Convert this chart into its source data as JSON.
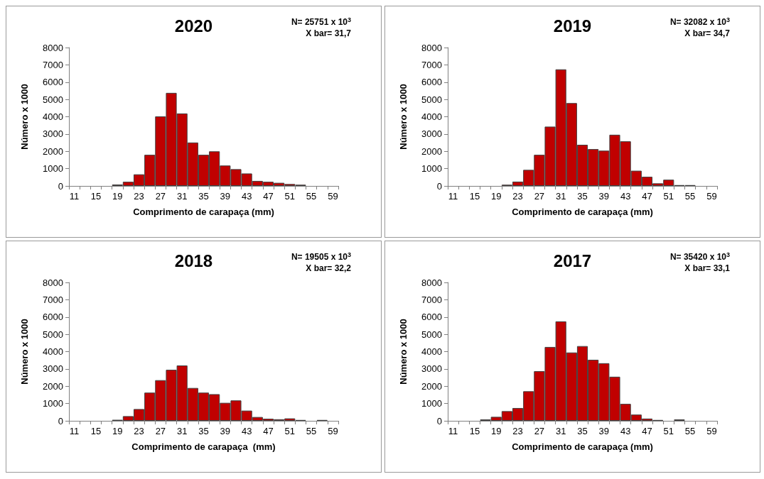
{
  "chart_data": [
    {
      "type": "bar",
      "title": "2020",
      "xlabel": "Comprimento de carapaça (mm)",
      "ylabel": "Número x 1000",
      "annotations": [
        "N= 25751 x 10$^{3}$",
        "X bar= 31,7"
      ],
      "categories": [
        "11",
        null,
        "15",
        null,
        "19",
        null,
        "23",
        null,
        "27",
        null,
        "31",
        null,
        "35",
        null,
        "39",
        null,
        "43",
        null,
        "47",
        null,
        "51",
        null,
        "55",
        null,
        "59"
      ],
      "values": [
        0,
        0,
        0,
        0,
        80,
        240,
        670,
        1800,
        4020,
        5380,
        4190,
        2510,
        1800,
        2000,
        1180,
        970,
        720,
        290,
        240,
        180,
        110,
        70,
        0,
        0,
        0
      ],
      "color": "#c00000",
      "ylim": [
        0,
        8000
      ],
      "yticks": [
        0,
        1000,
        2000,
        3000,
        4000,
        5000,
        6000,
        7000,
        8000
      ],
      "grid": false
    },
    {
      "type": "bar",
      "title": "2019",
      "xlabel": "Comprimento de carapaça (mm)",
      "ylabel": "Número x 1000",
      "annotations": [
        "N= 32082 x 10$^{3}$",
        "X bar= 34,7"
      ],
      "categories": [
        "11",
        null,
        "15",
        null,
        "19",
        null,
        "23",
        null,
        "27",
        null,
        "31",
        null,
        "35",
        null,
        "39",
        null,
        "43",
        null,
        "47",
        null,
        "51",
        null,
        "55",
        null,
        "59"
      ],
      "values": [
        0,
        0,
        0,
        0,
        0,
        70,
        250,
        930,
        1800,
        3430,
        6740,
        4790,
        2380,
        2130,
        2040,
        2960,
        2580,
        880,
        530,
        150,
        360,
        50,
        50,
        0,
        0
      ],
      "color": "#c00000",
      "ylim": [
        0,
        8000
      ],
      "yticks": [
        0,
        1000,
        2000,
        3000,
        4000,
        5000,
        6000,
        7000,
        8000
      ],
      "grid": false
    },
    {
      "type": "bar",
      "title": "2018",
      "xlabel": "Comprimento de carapaça  (mm)",
      "ylabel": "Número x 1000",
      "annotations": [
        "N= 19505 x 10$^{3}$",
        "X bar= 32,2"
      ],
      "categories": [
        "11",
        null,
        "15",
        null,
        "19",
        null,
        "23",
        null,
        "27",
        null,
        "31",
        null,
        "35",
        null,
        "39",
        null,
        "43",
        null,
        "47",
        null,
        "51",
        null,
        "55",
        null,
        "59"
      ],
      "values": [
        0,
        0,
        0,
        0,
        60,
        270,
        680,
        1630,
        2350,
        2950,
        3200,
        1900,
        1630,
        1540,
        1040,
        1180,
        590,
        220,
        120,
        90,
        140,
        50,
        0,
        50,
        0
      ],
      "color": "#c00000",
      "ylim": [
        0,
        8000
      ],
      "yticks": [
        0,
        1000,
        2000,
        3000,
        4000,
        5000,
        6000,
        7000,
        8000
      ],
      "grid": false
    },
    {
      "type": "bar",
      "title": "2017",
      "xlabel": "Comprimento de carapaça (mm)",
      "ylabel": "Número x 1000",
      "annotations": [
        "N= 35420 x 10$^{3}$",
        "X bar= 33,1"
      ],
      "categories": [
        "11",
        null,
        "15",
        null,
        "19",
        null,
        "23",
        null,
        "27",
        null,
        "31",
        null,
        "35",
        null,
        "39",
        null,
        "43",
        null,
        "47",
        null,
        "51",
        null,
        "55",
        null,
        "59"
      ],
      "values": [
        0,
        0,
        0,
        80,
        230,
        560,
        740,
        1710,
        2870,
        4270,
        5750,
        3950,
        4320,
        3530,
        3330,
        2550,
        980,
        360,
        130,
        50,
        0,
        80,
        0,
        0,
        0
      ],
      "color": "#c00000",
      "ylim": [
        0,
        8000
      ],
      "yticks": [
        0,
        1000,
        2000,
        3000,
        4000,
        5000,
        6000,
        7000,
        8000
      ],
      "grid": false
    }
  ]
}
